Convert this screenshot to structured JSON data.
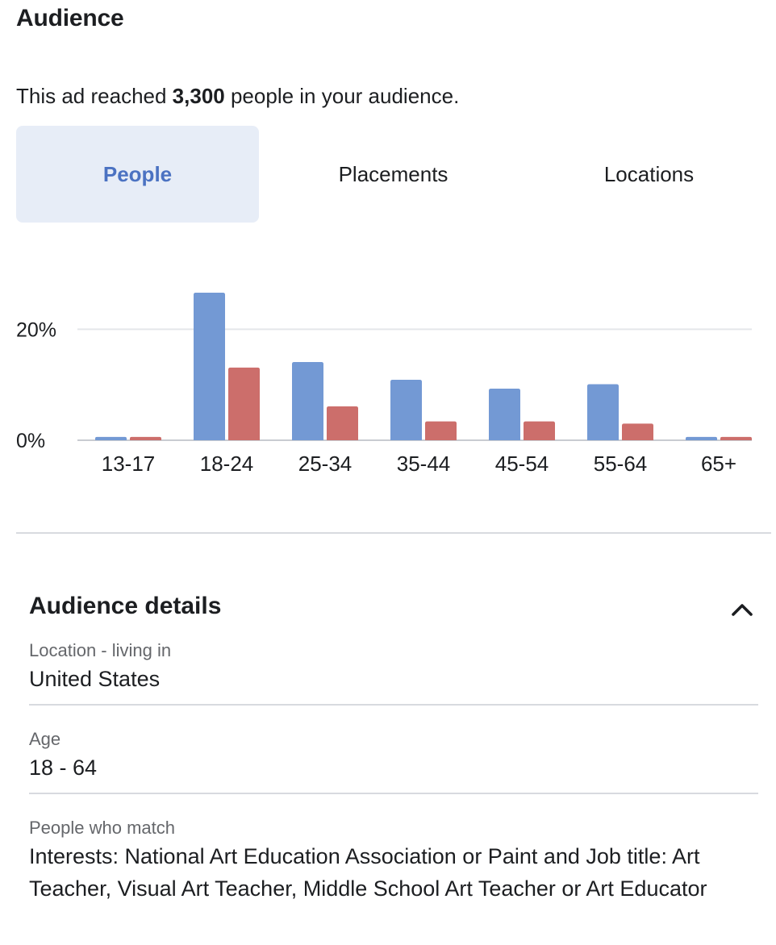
{
  "audience": {
    "title": "Audience",
    "reach_prefix": "This ad reached ",
    "reach_count": "3,300",
    "reach_suffix": " people in your audience."
  },
  "tabs": [
    {
      "label": "People",
      "active": true
    },
    {
      "label": "Placements",
      "active": false
    },
    {
      "label": "Locations",
      "active": false
    }
  ],
  "colors": {
    "series_a": "#7399d4",
    "series_b": "#cc6e6b",
    "active_tab_bg": "#e7edf7",
    "active_tab_text": "#4b72c2"
  },
  "chart_data": {
    "type": "bar",
    "categories": [
      "13-17",
      "18-24",
      "25-34",
      "35-44",
      "45-54",
      "55-64",
      "65+"
    ],
    "series": [
      {
        "color": "#7399d4",
        "values": [
          0.6,
          26.6,
          14.1,
          10.9,
          9.3,
          10.1,
          0.6
        ]
      },
      {
        "color": "#cc6e6b",
        "values": [
          0.6,
          13.1,
          6.1,
          3.4,
          3.4,
          3.0,
          0.6
        ]
      }
    ],
    "ytick_labels": [
      "0%",
      "20%"
    ],
    "ytick_values": [
      0,
      20
    ],
    "ylim": [
      0,
      30
    ],
    "grid": true
  },
  "details": {
    "title": "Audience details",
    "items": [
      {
        "label": "Location - living in",
        "value": "United States"
      },
      {
        "label": "Age",
        "value": "18 - 64"
      },
      {
        "label": "People who match",
        "value": "Interests: National Art Education Association or Paint and Job title: Art Teacher, Visual Art Teacher, Middle School Art Teacher or Art Educator"
      }
    ]
  },
  "icons": {
    "collapse": "chevron-up-icon"
  }
}
